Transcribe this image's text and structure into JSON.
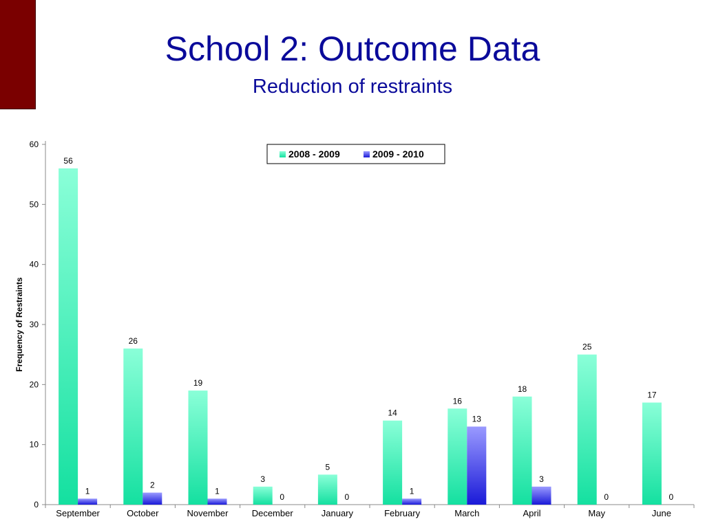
{
  "slide": {
    "title": "School 2: Outcome Data",
    "subtitle": "Reduction of restraints",
    "accent_color": "#7a0000",
    "title_color": "#0a0a9a"
  },
  "chart_data": {
    "type": "bar",
    "ylabel": "Frequency of Restraints",
    "xlabel": "",
    "ylim": [
      0,
      60
    ],
    "yticks": [
      0,
      10,
      20,
      30,
      40,
      50,
      60
    ],
    "categories": [
      "September",
      "October",
      "November",
      "December",
      "January",
      "February",
      "March",
      "April",
      "May",
      "June"
    ],
    "series": [
      {
        "name": "2008 - 2009",
        "color_top": "#8affd8",
        "color_bottom": "#14e0a0",
        "values": [
          56,
          26,
          19,
          3,
          5,
          14,
          16,
          18,
          25,
          17
        ]
      },
      {
        "name": "2009 - 2010",
        "color_top": "#9a9aff",
        "color_bottom": "#1a1ad8",
        "values": [
          1,
          2,
          1,
          0,
          0,
          1,
          13,
          3,
          0,
          0
        ]
      }
    ],
    "legend_position": "top-center",
    "grid": false,
    "data_labels": true
  }
}
